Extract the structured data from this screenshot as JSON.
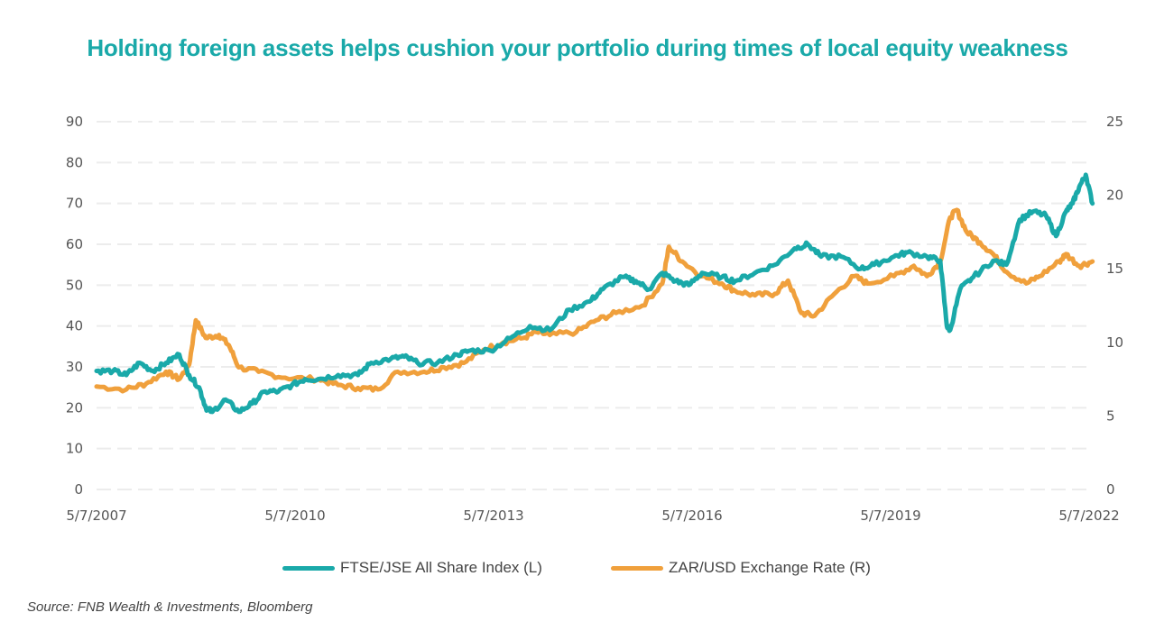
{
  "chart_data": {
    "type": "line",
    "title": "Holding foreign assets helps cushion your portfolio during times of local equity weakness",
    "source": "Source: FNB Wealth & Investments, Bloomberg",
    "x_ticks": [
      {
        "label": "5/7/2007",
        "x": 2007.35
      },
      {
        "label": "5/7/2010",
        "x": 2010.35
      },
      {
        "label": "5/7/2013",
        "x": 2013.35
      },
      {
        "label": "5/7/2016",
        "x": 2016.35
      },
      {
        "label": "5/7/2019",
        "x": 2019.35
      },
      {
        "label": "5/7/2022",
        "x": 2022.35
      }
    ],
    "xlim": [
      2007.35,
      2022.35
    ],
    "y_left": {
      "lim": [
        0,
        90
      ],
      "ticks": [
        "0",
        "10",
        "20",
        "30",
        "40",
        "50",
        "60",
        "70",
        "80",
        "90"
      ]
    },
    "y_right": {
      "lim": [
        0,
        25
      ],
      "ticks": [
        "0",
        "5",
        "10",
        "15",
        "20",
        "25"
      ]
    },
    "grid": true,
    "legend_position": "bottom",
    "series": [
      {
        "name": "FTSE/JSE All Share Index (L)",
        "axis": "left",
        "color": "#1aa9a9",
        "x": [
          2007.35,
          2007.6,
          2007.8,
          2008.0,
          2008.2,
          2008.4,
          2008.6,
          2008.75,
          2008.9,
          2009.0,
          2009.1,
          2009.3,
          2009.5,
          2009.7,
          2009.9,
          2010.1,
          2010.3,
          2010.5,
          2010.7,
          2011.0,
          2011.3,
          2011.5,
          2011.8,
          2012.0,
          2012.2,
          2012.5,
          2012.8,
          2013.0,
          2013.3,
          2013.6,
          2013.9,
          2014.2,
          2014.5,
          2014.8,
          2015.0,
          2015.3,
          2015.5,
          2015.7,
          2015.9,
          2016.1,
          2016.3,
          2016.5,
          2016.8,
          2017.0,
          2017.3,
          2017.6,
          2017.9,
          2018.1,
          2018.3,
          2018.6,
          2018.9,
          2019.1,
          2019.4,
          2019.6,
          2019.9,
          2020.1,
          2020.2,
          2020.25,
          2020.4,
          2020.6,
          2020.9,
          2021.1,
          2021.3,
          2021.5,
          2021.7,
          2021.85,
          2022.0,
          2022.1,
          2022.2,
          2022.3,
          2022.4
        ],
        "y": [
          29,
          29,
          28,
          31,
          29,
          31,
          33,
          28,
          25,
          20,
          19,
          22,
          19,
          21,
          24,
          24,
          25.5,
          27,
          27,
          28,
          28,
          31,
          32,
          32.5,
          31,
          31,
          33,
          34,
          34,
          37,
          40,
          39,
          44,
          46,
          49,
          52,
          51,
          49,
          53,
          51,
          50,
          53,
          52,
          51,
          53,
          55,
          59,
          60,
          57,
          57,
          54,
          55,
          57,
          58,
          57,
          56,
          40,
          39,
          49,
          52,
          56,
          55,
          66,
          68,
          67,
          62,
          68,
          70,
          74,
          77,
          70
        ]
      },
      {
        "name": "ZAR/USD Exchange Rate (R)",
        "axis": "right",
        "color": "#f0a03c",
        "x": [
          2007.35,
          2007.8,
          2008.1,
          2008.4,
          2008.6,
          2008.75,
          2008.85,
          2009.0,
          2009.2,
          2009.35,
          2009.5,
          2009.8,
          2010.2,
          2010.7,
          2011.0,
          2011.3,
          2011.6,
          2011.9,
          2012.3,
          2012.6,
          2012.9,
          2013.2,
          2013.5,
          2013.8,
          2014.0,
          2014.2,
          2014.6,
          2014.9,
          2015.2,
          2015.6,
          2015.9,
          2016.0,
          2016.2,
          2016.5,
          2016.8,
          2017.0,
          2017.3,
          2017.6,
          2017.8,
          2018.0,
          2018.2,
          2018.5,
          2018.8,
          2019.0,
          2019.4,
          2019.7,
          2019.9,
          2020.1,
          2020.25,
          2020.35,
          2020.5,
          2020.7,
          2020.9,
          2021.1,
          2021.4,
          2021.6,
          2021.9,
          2022.0,
          2022.2,
          2022.4
        ],
        "y": [
          7,
          6.8,
          7.2,
          8,
          7.5,
          8.5,
          11.5,
          10.3,
          10.5,
          9.8,
          8.3,
          8,
          7.6,
          7.5,
          7.1,
          6.9,
          6.8,
          8,
          8,
          8.3,
          8.6,
          9.5,
          10,
          10.3,
          10.7,
          10.5,
          10.7,
          11.5,
          12,
          12.5,
          14,
          16.5,
          15.5,
          14.5,
          14,
          13.5,
          13.2,
          13.3,
          14.2,
          12,
          11.8,
          13.3,
          14.5,
          14,
          14.5,
          15.2,
          14.5,
          15.5,
          18.5,
          19,
          17.5,
          16.8,
          16,
          14.8,
          14,
          14.5,
          15.5,
          16,
          15.2,
          15.5
        ]
      }
    ]
  }
}
